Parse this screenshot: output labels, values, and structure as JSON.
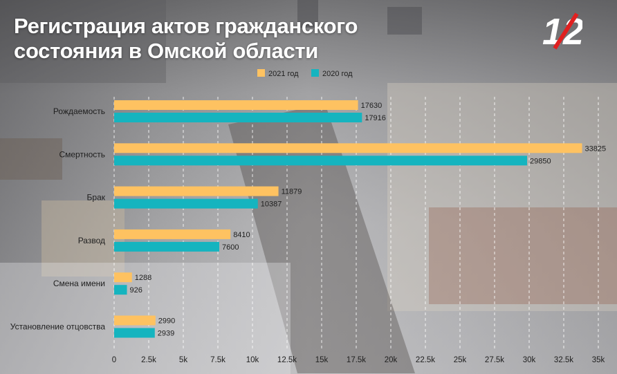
{
  "title_line1": "Регистрация актов гражданского",
  "title_line2": "состояния в Омской области",
  "logo_text": "12",
  "colors": {
    "series_2021": "#fec261",
    "series_2020": "#15b4bf",
    "grid": "#ffffff"
  },
  "chart_data": {
    "type": "bar",
    "orientation": "horizontal",
    "categories": [
      "Рождаемость",
      "Смертность",
      "Брак",
      "Развод",
      "Смена имени",
      "Установление отцовства"
    ],
    "series": [
      {
        "name": "2021 год",
        "values": [
          17630,
          33825,
          11879,
          8410,
          1288,
          2990
        ]
      },
      {
        "name": "2020 год",
        "values": [
          17916,
          29850,
          10387,
          7600,
          926,
          2939
        ]
      }
    ],
    "xlim": [
      0,
      35000
    ],
    "x_ticks": [
      0,
      2500,
      5000,
      7500,
      10000,
      12500,
      15000,
      17500,
      20000,
      22500,
      25000,
      27500,
      30000,
      32500,
      35000
    ],
    "x_tick_labels": [
      "0",
      "2.5k",
      "5k",
      "7.5k",
      "10k",
      "12.5k",
      "15k",
      "17.5k",
      "20k",
      "22.5k",
      "25k",
      "27.5k",
      "30k",
      "32.5k",
      "35k"
    ],
    "grid": true,
    "legend_position": "top"
  }
}
